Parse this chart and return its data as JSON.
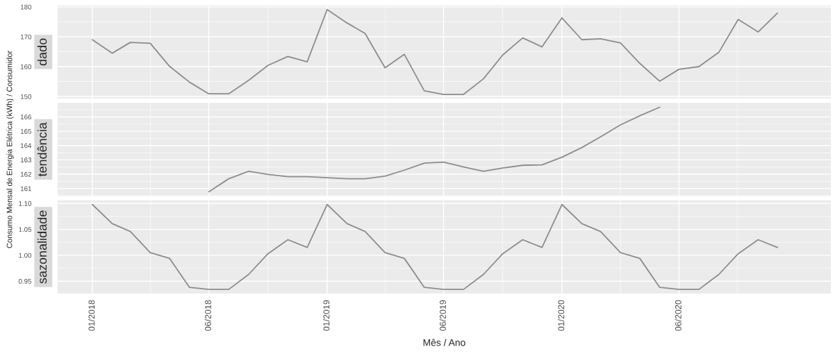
{
  "chart_data": [
    {
      "type": "line",
      "title": "dado",
      "tick_labels": "y",
      "grid": true,
      "x": [
        "2018-01",
        "2018-02",
        "2018-03",
        "2018-04",
        "2018-05",
        "2018-06",
        "2018-07",
        "2018-08",
        "2018-09",
        "2018-10",
        "2018-11",
        "2018-12",
        "2019-01",
        "2019-02",
        "2019-03",
        "2019-04",
        "2019-05",
        "2019-06",
        "2019-07",
        "2019-08",
        "2019-09",
        "2019-10",
        "2019-11",
        "2019-12",
        "2020-01",
        "2020-02",
        "2020-03",
        "2020-04",
        "2020-05",
        "2020-06",
        "2020-07",
        "2020-08",
        "2020-09",
        "2020-10",
        "2020-11",
        "2020-12"
      ],
      "series": [
        {
          "color": "#8c8c8c",
          "values": [
            169.0,
            164.5,
            168.1,
            167.8,
            160.1,
            154.8,
            150.9,
            150.9,
            155.4,
            160.4,
            163.4,
            161.6,
            179.1,
            174.6,
            171.1,
            159.6,
            164.1,
            151.9,
            150.7,
            150.7,
            155.9,
            163.9,
            169.6,
            166.6,
            176.3,
            169.0,
            169.3,
            167.9,
            161.1,
            155.1,
            159.1,
            160.0,
            164.8,
            175.8,
            171.6,
            177.9
          ]
        }
      ],
      "xlim": [
        "2017-11-08",
        "2021-02-22"
      ],
      "ylim": [
        149.3,
        180.5
      ],
      "yticks": [
        150,
        160,
        170,
        180
      ]
    },
    {
      "type": "line",
      "title": "tendência",
      "tick_labels": "y",
      "grid": true,
      "ylabel": "Consumo Mensal de Energia Elétrica (kWh) / Consumidor",
      "x": [
        "2018-07",
        "2018-08",
        "2018-09",
        "2018-10",
        "2018-11",
        "2018-12",
        "2019-01",
        "2019-02",
        "2019-03",
        "2019-04",
        "2019-05",
        "2019-06",
        "2019-07",
        "2019-08",
        "2019-09",
        "2019-10",
        "2019-11",
        "2019-12",
        "2020-01",
        "2020-02",
        "2020-03",
        "2020-04",
        "2020-05",
        "2020-06"
      ],
      "series": [
        {
          "color": "#8c8c8c",
          "values": [
            160.77,
            161.68,
            162.2,
            161.98,
            161.83,
            161.83,
            161.75,
            161.68,
            161.68,
            161.86,
            162.28,
            162.77,
            162.84,
            162.5,
            162.2,
            162.43,
            162.62,
            162.65,
            163.18,
            163.86,
            164.61,
            165.44,
            166.08,
            166.68
          ]
        }
      ],
      "xlim": [
        "2017-11-08",
        "2021-02-22"
      ],
      "ylim": [
        160.47,
        166.98
      ],
      "yticks": [
        161,
        162,
        163,
        164,
        165,
        166
      ]
    },
    {
      "type": "line",
      "title": "sazonalidade",
      "grid": true,
      "xlabel": "Mês / Ano",
      "x": [
        "2018-01",
        "2018-02",
        "2018-03",
        "2018-04",
        "2018-05",
        "2018-06",
        "2018-07",
        "2018-08",
        "2018-09",
        "2018-10",
        "2018-11",
        "2018-12",
        "2019-01",
        "2019-02",
        "2019-03",
        "2019-04",
        "2019-05",
        "2019-06",
        "2019-07",
        "2019-08",
        "2019-09",
        "2019-10",
        "2019-11",
        "2019-12",
        "2020-01",
        "2020-02",
        "2020-03",
        "2020-04",
        "2020-05",
        "2020-06",
        "2020-07",
        "2020-08",
        "2020-09",
        "2020-10",
        "2020-11",
        "2020-12"
      ],
      "series": [
        {
          "color": "#8c8c8c",
          "values": [
            1.098,
            1.061,
            1.046,
            1.005,
            0.994,
            0.938,
            0.934,
            0.934,
            0.963,
            1.003,
            1.03,
            1.015,
            1.098,
            1.061,
            1.046,
            1.005,
            0.994,
            0.938,
            0.934,
            0.934,
            0.963,
            1.003,
            1.03,
            1.015,
            1.098,
            1.061,
            1.046,
            1.005,
            0.994,
            0.938,
            0.934,
            0.934,
            0.963,
            1.003,
            1.03,
            1.015
          ]
        }
      ],
      "xlim": [
        "2017-11-08",
        "2021-02-22"
      ],
      "xticks": [
        {
          "value": "2018-01-01",
          "label": "01/2018"
        },
        {
          "value": "2018-07-01",
          "label": "06/2018"
        },
        {
          "value": "2019-01-01",
          "label": "01/2019"
        },
        {
          "value": "2019-07-01",
          "label": "06/2019"
        },
        {
          "value": "2020-01-01",
          "label": "01/2020"
        },
        {
          "value": "2020-07-01",
          "label": "06/2020"
        }
      ],
      "ylim": [
        0.926,
        1.106
      ],
      "yticks": [
        {
          "value": 0.95,
          "label": "0.95"
        },
        {
          "value": 1.0,
          "label": "1.00"
        },
        {
          "value": 1.05,
          "label": "1.05"
        },
        {
          "value": 1.1,
          "label": "1.10"
        }
      ]
    }
  ]
}
